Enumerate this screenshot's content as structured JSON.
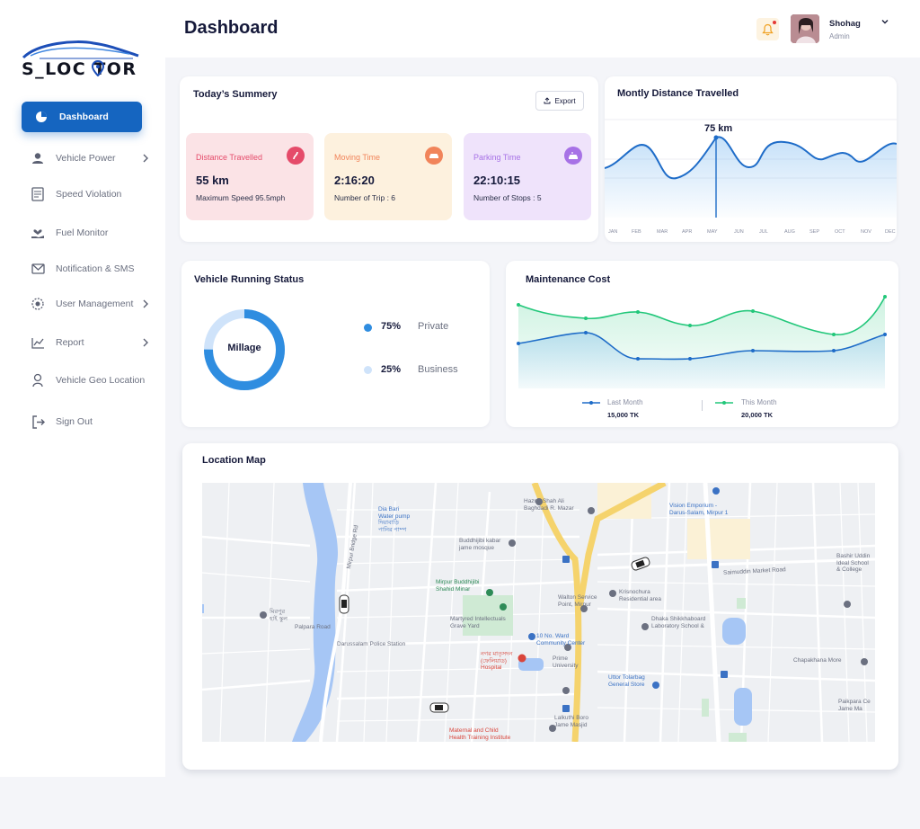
{
  "brand": {
    "logo_text": "S_LOC  TOR"
  },
  "sidebar": {
    "items": [
      {
        "label": "Dashboard",
        "icon": "pie-chart-icon",
        "active": true
      },
      {
        "label": "Vehicle Power",
        "icon": "user-icon",
        "chevron": true
      },
      {
        "label": "Speed Violation",
        "icon": "speed-doc-icon"
      },
      {
        "label": "Fuel Monitor",
        "icon": "hand-heart-icon"
      },
      {
        "label": "Notification & SMS",
        "icon": "mail-icon"
      },
      {
        "label": "User Management",
        "icon": "users-gear-icon",
        "chevron": true
      },
      {
        "label": "Report",
        "icon": "line-chart-icon",
        "chevron": true
      },
      {
        "label": "Vehicle Geo Location",
        "icon": "geo-pin-icon"
      },
      {
        "label": "Sign Out",
        "icon": "sign-out-icon"
      }
    ]
  },
  "header": {
    "title": "Dashboard",
    "user": {
      "name": "Shohag",
      "role": "Admin"
    }
  },
  "summary": {
    "title": "Today’s Summery",
    "export_label": "Export",
    "cards": [
      {
        "label": "Distance Travelled",
        "value": "55 km",
        "sub": "Maximum Speed 95.5mph",
        "bg": "#fbe3e6",
        "accent": "#e54b6a",
        "icon": "road-icon"
      },
      {
        "label": "Moving Time",
        "value": "2:16:20",
        "sub": "Number of Trip : 6",
        "bg": "#fdf1de",
        "accent": "#f1845a",
        "icon": "car-icon"
      },
      {
        "label": "Parking Time",
        "value": "22:10:15",
        "sub": "Number of Stops : 5",
        "bg": "#efe3fb",
        "accent": "#a772e6",
        "icon": "parking-icon"
      }
    ]
  },
  "distance": {
    "title": "Montly Distance Travelled",
    "highlight_label": "75 km",
    "months": [
      "JAN",
      "FEB",
      "MAR",
      "APR",
      "MAY",
      "JUN",
      "JUL",
      "AUG",
      "SEP",
      "OCT",
      "NOV",
      "DEC"
    ]
  },
  "running_status": {
    "title": "Vehicle Running Status",
    "center_label": "Millage",
    "segments": [
      {
        "pct": "75%",
        "value": 75,
        "name": "Private",
        "color": "#2f8de0"
      },
      {
        "pct": "25%",
        "value": 25,
        "name": "Business",
        "color": "#cfe3fa"
      }
    ]
  },
  "maintenance": {
    "title": "Maintenance Cost",
    "legend": [
      {
        "name": "Last Month",
        "value": "15,000 TK",
        "color": "#2f7fd6"
      },
      {
        "name": "This Month",
        "value": "20,000 TK",
        "color": "#22c77a"
      }
    ]
  },
  "location_map": {
    "title": "Location Map",
    "labels": [
      {
        "text": "Hazrat Shah Ali\nBaghdadi R. Mazar",
        "cls": ""
      },
      {
        "text": "Dia Bari\nWater pump\nদিয়াবাড়ি\nপানির পাম্প",
        "cls": "blue"
      },
      {
        "text": "Buddhijibi kabar\njame mosque",
        "cls": ""
      },
      {
        "text": "Mirpur Buddhijibi\nShahid Minar",
        "cls": "green"
      },
      {
        "text": "Martyred Intellectuals\nGrave Yard",
        "cls": ""
      },
      {
        "text": "Walton Service\nPoint, Mirpur",
        "cls": ""
      },
      {
        "text": "10 No. Ward\nCommunity Center",
        "cls": "blue"
      },
      {
        "text": "Darussalam Police Station",
        "cls": ""
      },
      {
        "text": "Palpara Road",
        "cls": ""
      },
      {
        "text": "Mirpur Bridge Rd",
        "cls": ""
      },
      {
        "text": "মিরপুর\nহাই স্কুল",
        "cls": ""
      },
      {
        "text": "Vision Emporium -\nDarus-Salam, Mirpur 1",
        "cls": "blue"
      },
      {
        "text": "Krisnochura\nResidential area",
        "cls": ""
      },
      {
        "text": "Saimuddin Market Road",
        "cls": ""
      },
      {
        "text": "Dhaka Shikkhaboard\nLaboratory School &",
        "cls": ""
      },
      {
        "text": "Uttor Tolarbag\nGeneral Store",
        "cls": "blue"
      },
      {
        "text": "Prime\nUniversity",
        "cls": ""
      },
      {
        "text": "নগর মাতৃসদন\n(ফেলিয়াড)\nHospital",
        "cls": "red"
      },
      {
        "text": "Maternal and Child\nHealth Training Institute",
        "cls": "red"
      },
      {
        "text": "Lalkuthi Boro\nJame Masjid",
        "cls": ""
      },
      {
        "text": "Bashir Uddin\nIdeal School\n& College",
        "cls": ""
      },
      {
        "text": "Chapakhana More",
        "cls": ""
      },
      {
        "text": "Paikpara Ce\nJame Ma",
        "cls": ""
      }
    ]
  },
  "colors": {
    "primary": "#1565c0",
    "line_blue": "#2f7fd6",
    "line_green": "#22c77a"
  }
}
